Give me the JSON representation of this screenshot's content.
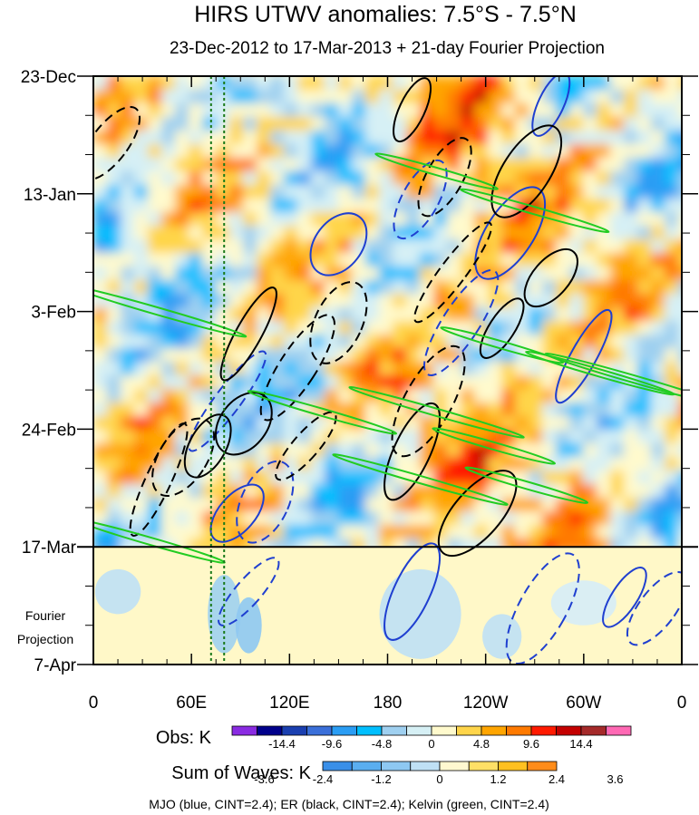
{
  "chart_data": {
    "type": "heatmap",
    "title": "HIRS UTWV anomalies: 7.5°S - 7.5°N",
    "subtitle": "23-Dec-2012 to 17-Mar-2013 + 21-day Fourier Projection",
    "x_ticks": [
      "0",
      "60E",
      "120E",
      "180",
      "120W",
      "60W",
      "0"
    ],
    "x_tick_lon": [
      0,
      60,
      120,
      180,
      240,
      300,
      360
    ],
    "xlim": [
      0,
      360
    ],
    "y_ticks": [
      "23-Dec",
      "13-Jan",
      "3-Feb",
      "24-Feb",
      "17-Mar",
      "7-Apr"
    ],
    "y_tick_days": [
      0,
      21,
      42,
      63,
      84,
      105
    ],
    "ylim_days": [
      0,
      105
    ],
    "obs_end_day": 84,
    "projection_label": [
      "Fourier",
      "Projection"
    ],
    "reference_lines_lon": [
      72,
      80
    ],
    "obs_colorbar": {
      "label": "Obs: K",
      "tick_labels": [
        "-14.4",
        "-9.6",
        "-4.8",
        "0",
        "4.8",
        "9.6",
        "14.4"
      ],
      "colors": [
        "#8a2be2",
        "#00008b",
        "#1a3fb0",
        "#3a6fd9",
        "#2a9df4",
        "#00bfff",
        "#9fd0f0",
        "#d6f0f5",
        "#fffacd",
        "#ffd54a",
        "#ffa500",
        "#ff7a00",
        "#ff1a00",
        "#c40000",
        "#a52a2a",
        "#ff69b4"
      ]
    },
    "wave_colorbar": {
      "label": "Sum of Waves: K",
      "tick_labels": [
        "-3.6",
        "-2.4",
        "-1.2",
        "0",
        "1.2",
        "2.4",
        "3.6"
      ],
      "colors": [
        "#3a8fe8",
        "#5aaef0",
        "#8ec8f2",
        "#bfe0f5",
        "#fff8d0",
        "#ffe066",
        "#ffc020",
        "#ff8c1a"
      ]
    },
    "legend_text": "MJO (blue, CINT=2.4); ER (black, CINT=2.4); Kelvin (green, CINT=2.4)",
    "series": [
      {
        "color": "#1f3fd0",
        "centers": [
          [
            280,
            5
          ],
          [
            200,
            22
          ],
          [
            255,
            28
          ],
          [
            82,
            58
          ],
          [
            88,
            78
          ],
          [
            105,
            76
          ],
          [
            300,
            50
          ],
          [
            225,
            44
          ],
          [
            150,
            30
          ],
          [
            95,
            92
          ],
          [
            195,
            92
          ],
          [
            275,
            95
          ],
          [
            325,
            93
          ],
          [
            345,
            95
          ]
        ]
      },
      {
        "color": "#000000",
        "centers": [
          [
            195,
            6
          ],
          [
            215,
            18
          ],
          [
            265,
            17
          ],
          [
            220,
            35
          ],
          [
            280,
            36
          ],
          [
            150,
            44
          ],
          [
            95,
            46
          ],
          [
            125,
            52
          ],
          [
            92,
            62
          ],
          [
            130,
            66
          ],
          [
            195,
            67
          ],
          [
            205,
            58
          ],
          [
            250,
            45
          ],
          [
            10,
            12
          ],
          [
            235,
            78
          ],
          [
            40,
            72
          ],
          [
            70,
            66
          ],
          [
            55,
            68
          ]
        ]
      },
      {
        "color": "#22cc22",
        "centers": [
          [
            210,
            17
          ],
          [
            270,
            24
          ],
          [
            40,
            42
          ],
          [
            250,
            48
          ],
          [
            310,
            53
          ],
          [
            210,
            60
          ],
          [
            245,
            66
          ],
          [
            140,
            60
          ],
          [
            200,
            72
          ],
          [
            265,
            73
          ],
          [
            35,
            83
          ],
          [
            330,
            54
          ]
        ]
      }
    ]
  }
}
